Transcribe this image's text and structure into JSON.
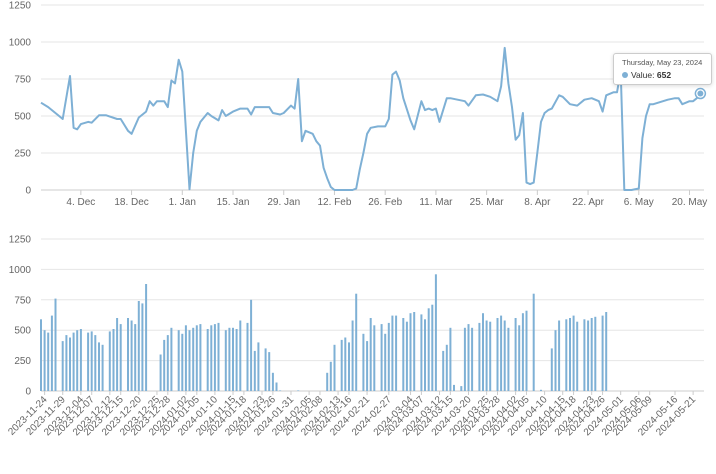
{
  "chart_data": [
    {
      "type": "line",
      "y_ticks": [
        "0",
        "250",
        "500",
        "750",
        "1000",
        "1250"
      ],
      "ylim": [
        0,
        1250
      ],
      "x_range": [
        "2023-11-23",
        "2024-05-24"
      ],
      "x_ticks": [
        {
          "date": "2023-12-04",
          "label": "4. Dec"
        },
        {
          "date": "2023-12-18",
          "label": "18. Dec"
        },
        {
          "date": "2024-01-01",
          "label": "1. Jan"
        },
        {
          "date": "2024-01-15",
          "label": "15. Jan"
        },
        {
          "date": "2024-01-29",
          "label": "29. Jan"
        },
        {
          "date": "2024-02-12",
          "label": "12. Feb"
        },
        {
          "date": "2024-02-26",
          "label": "26. Feb"
        },
        {
          "date": "2024-03-11",
          "label": "11. Mar"
        },
        {
          "date": "2024-03-25",
          "label": "25. Mar"
        },
        {
          "date": "2024-04-08",
          "label": "8. Apr"
        },
        {
          "date": "2024-04-22",
          "label": "22. Apr"
        },
        {
          "date": "2024-05-06",
          "label": "6. May"
        },
        {
          "date": "2024-05-20",
          "label": "20. May"
        }
      ],
      "grid": true,
      "color": "#7eb0d5",
      "points": [
        [
          "2023-11-23",
          590
        ],
        [
          "2023-11-25",
          560
        ],
        [
          "2023-11-28",
          500
        ],
        [
          "2023-11-29",
          480
        ],
        [
          "2023-12-01",
          770
        ],
        [
          "2023-12-02",
          420
        ],
        [
          "2023-12-03",
          410
        ],
        [
          "2023-12-04",
          445
        ],
        [
          "2023-12-06",
          460
        ],
        [
          "2023-12-07",
          455
        ],
        [
          "2023-12-09",
          505
        ],
        [
          "2023-12-11",
          505
        ],
        [
          "2023-12-14",
          480
        ],
        [
          "2023-12-15",
          480
        ],
        [
          "2023-12-17",
          400
        ],
        [
          "2023-12-18",
          380
        ],
        [
          "2023-12-20",
          490
        ],
        [
          "2023-12-22",
          530
        ],
        [
          "2023-12-23",
          600
        ],
        [
          "2023-12-24",
          570
        ],
        [
          "2023-12-25",
          600
        ],
        [
          "2023-12-27",
          600
        ],
        [
          "2023-12-28",
          560
        ],
        [
          "2023-12-29",
          740
        ],
        [
          "2023-12-30",
          720
        ],
        [
          "2023-12-31",
          880
        ],
        [
          "2024-01-01",
          800
        ],
        [
          "2024-01-03",
          5
        ],
        [
          "2024-01-04",
          250
        ],
        [
          "2024-01-05",
          400
        ],
        [
          "2024-01-06",
          460
        ],
        [
          "2024-01-08",
          520
        ],
        [
          "2024-01-09",
          500
        ],
        [
          "2024-01-11",
          470
        ],
        [
          "2024-01-12",
          540
        ],
        [
          "2024-01-13",
          500
        ],
        [
          "2024-01-15",
          530
        ],
        [
          "2024-01-17",
          550
        ],
        [
          "2024-01-19",
          550
        ],
        [
          "2024-01-20",
          510
        ],
        [
          "2024-01-21",
          560
        ],
        [
          "2024-01-23",
          560
        ],
        [
          "2024-01-25",
          560
        ],
        [
          "2024-01-26",
          520
        ],
        [
          "2024-01-28",
          510
        ],
        [
          "2024-01-29",
          520
        ],
        [
          "2024-01-31",
          570
        ],
        [
          "2024-02-01",
          550
        ],
        [
          "2024-02-02",
          750
        ],
        [
          "2024-02-03",
          330
        ],
        [
          "2024-02-04",
          400
        ],
        [
          "2024-02-06",
          380
        ],
        [
          "2024-02-07",
          330
        ],
        [
          "2024-02-08",
          300
        ],
        [
          "2024-02-09",
          150
        ],
        [
          "2024-02-10",
          80
        ],
        [
          "2024-02-11",
          20
        ],
        [
          "2024-02-12",
          0
        ],
        [
          "2024-02-14",
          0
        ],
        [
          "2024-02-17",
          0
        ],
        [
          "2024-02-18",
          10
        ],
        [
          "2024-02-19",
          140
        ],
        [
          "2024-02-20",
          250
        ],
        [
          "2024-02-21",
          380
        ],
        [
          "2024-02-22",
          420
        ],
        [
          "2024-02-24",
          430
        ],
        [
          "2024-02-26",
          430
        ],
        [
          "2024-02-27",
          480
        ],
        [
          "2024-02-28",
          780
        ],
        [
          "2024-02-29",
          800
        ],
        [
          "2024-03-01",
          740
        ],
        [
          "2024-03-02",
          620
        ],
        [
          "2024-03-04",
          470
        ],
        [
          "2024-03-05",
          410
        ],
        [
          "2024-03-07",
          600
        ],
        [
          "2024-03-08",
          540
        ],
        [
          "2024-03-09",
          550
        ],
        [
          "2024-03-10",
          540
        ],
        [
          "2024-03-11",
          550
        ],
        [
          "2024-03-12",
          460
        ],
        [
          "2024-03-14",
          620
        ],
        [
          "2024-03-15",
          620
        ],
        [
          "2024-03-17",
          610
        ],
        [
          "2024-03-19",
          600
        ],
        [
          "2024-03-20",
          570
        ],
        [
          "2024-03-22",
          640
        ],
        [
          "2024-03-24",
          645
        ],
        [
          "2024-03-26",
          630
        ],
        [
          "2024-03-28",
          600
        ],
        [
          "2024-03-29",
          700
        ],
        [
          "2024-03-30",
          960
        ],
        [
          "2024-03-31",
          720
        ],
        [
          "2024-04-01",
          560
        ],
        [
          "2024-04-02",
          340
        ],
        [
          "2024-04-03",
          370
        ],
        [
          "2024-04-04",
          520
        ],
        [
          "2024-04-05",
          50
        ],
        [
          "2024-04-06",
          40
        ],
        [
          "2024-04-07",
          50
        ],
        [
          "2024-04-08",
          250
        ],
        [
          "2024-04-09",
          460
        ],
        [
          "2024-04-10",
          520
        ],
        [
          "2024-04-11",
          540
        ],
        [
          "2024-04-12",
          550
        ],
        [
          "2024-04-14",
          640
        ],
        [
          "2024-04-15",
          630
        ],
        [
          "2024-04-17",
          580
        ],
        [
          "2024-04-19",
          570
        ],
        [
          "2024-04-21",
          610
        ],
        [
          "2024-04-23",
          620
        ],
        [
          "2024-04-25",
          600
        ],
        [
          "2024-04-26",
          530
        ],
        [
          "2024-04-27",
          640
        ],
        [
          "2024-04-29",
          660
        ],
        [
          "2024-04-30",
          660
        ],
        [
          "2024-05-01",
          800
        ],
        [
          "2024-05-02",
          0
        ],
        [
          "2024-05-04",
          0
        ],
        [
          "2024-05-06",
          10
        ],
        [
          "2024-05-07",
          350
        ],
        [
          "2024-05-08",
          500
        ],
        [
          "2024-05-09",
          580
        ],
        [
          "2024-05-10",
          580
        ],
        [
          "2024-05-14",
          610
        ],
        [
          "2024-05-16",
          620
        ],
        [
          "2024-05-17",
          620
        ],
        [
          "2024-05-18",
          580
        ],
        [
          "2024-05-19",
          590
        ],
        [
          "2024-05-20",
          600
        ],
        [
          "2024-05-21",
          600
        ],
        [
          "2024-05-22",
          620
        ],
        [
          "2024-05-23",
          652
        ]
      ],
      "tooltip": {
        "date": "2024-05-23",
        "date_label": "Thursday, May 23, 2024",
        "series_label": "Value:",
        "value": "652"
      }
    },
    {
      "type": "bar",
      "y_ticks": [
        "0",
        "250",
        "500",
        "750",
        "1000",
        "1250"
      ],
      "ylim": [
        0,
        1250
      ],
      "x_range": [
        "2023-11-23",
        "2024-05-24"
      ],
      "grid": true,
      "color": "#7eb0d5",
      "categories": [
        "2023-11-24",
        "2023-11-29",
        "2023-12-04",
        "2023-12-07",
        "2023-12-12",
        "2023-12-15",
        "2023-12-20",
        "2023-12-25",
        "2023-12-28",
        "2024-01-02",
        "2024-01-05",
        "2024-01-10",
        "2024-01-15",
        "2024-01-18",
        "2024-01-23",
        "2024-01-26",
        "2024-01-31",
        "2024-02-05",
        "2024-02-08",
        "2024-02-13",
        "2024-02-16",
        "2024-02-21",
        "2024-02-27",
        "2024-03-04",
        "2024-03-07",
        "2024-03-12",
        "2024-03-15",
        "2024-03-20",
        "2024-03-25",
        "2024-03-28",
        "2024-04-02",
        "2024-04-05",
        "2024-04-10",
        "2024-04-15",
        "2024-04-18",
        "2024-04-23",
        "2024-04-26",
        "2024-05-01",
        "2024-05-06",
        "2024-05-09",
        "2024-05-16",
        "2024-05-21"
      ],
      "points": [
        [
          "2023-11-23",
          590
        ],
        [
          "2023-11-24",
          500
        ],
        [
          "2023-11-25",
          480
        ],
        [
          "2023-11-26",
          620
        ],
        [
          "2023-11-27",
          760
        ],
        [
          "2023-11-29",
          410
        ],
        [
          "2023-11-30",
          460
        ],
        [
          "2023-12-01",
          440
        ],
        [
          "2023-12-02",
          480
        ],
        [
          "2023-12-03",
          500
        ],
        [
          "2023-12-04",
          510
        ],
        [
          "2023-12-06",
          480
        ],
        [
          "2023-12-07",
          490
        ],
        [
          "2023-12-08",
          460
        ],
        [
          "2023-12-09",
          400
        ],
        [
          "2023-12-10",
          380
        ],
        [
          "2023-12-12",
          490
        ],
        [
          "2023-12-13",
          510
        ],
        [
          "2023-12-14",
          600
        ],
        [
          "2023-12-15",
          550
        ],
        [
          "2023-12-17",
          600
        ],
        [
          "2023-12-18",
          580
        ],
        [
          "2023-12-19",
          550
        ],
        [
          "2023-12-20",
          740
        ],
        [
          "2023-12-21",
          720
        ],
        [
          "2023-12-22",
          880
        ],
        [
          "2023-12-26",
          300
        ],
        [
          "2023-12-27",
          420
        ],
        [
          "2023-12-28",
          460
        ],
        [
          "2023-12-29",
          520
        ],
        [
          "2023-12-31",
          500
        ],
        [
          "2024-01-01",
          470
        ],
        [
          "2024-01-02",
          540
        ],
        [
          "2024-01-03",
          500
        ],
        [
          "2024-01-04",
          520
        ],
        [
          "2024-01-05",
          540
        ],
        [
          "2024-01-06",
          550
        ],
        [
          "2024-01-08",
          510
        ],
        [
          "2024-01-09",
          540
        ],
        [
          "2024-01-10",
          550
        ],
        [
          "2024-01-11",
          560
        ],
        [
          "2024-01-13",
          500
        ],
        [
          "2024-01-14",
          520
        ],
        [
          "2024-01-15",
          520
        ],
        [
          "2024-01-16",
          510
        ],
        [
          "2024-01-17",
          580
        ],
        [
          "2024-01-19",
          560
        ],
        [
          "2024-01-20",
          750
        ],
        [
          "2024-01-21",
          330
        ],
        [
          "2024-01-22",
          400
        ],
        [
          "2024-01-24",
          350
        ],
        [
          "2024-01-25",
          320
        ],
        [
          "2024-01-26",
          150
        ],
        [
          "2024-01-27",
          70
        ],
        [
          "2024-01-28",
          5
        ],
        [
          "2024-02-02",
          5
        ],
        [
          "2024-02-10",
          150
        ],
        [
          "2024-02-11",
          240
        ],
        [
          "2024-02-12",
          380
        ],
        [
          "2024-02-14",
          420
        ],
        [
          "2024-02-15",
          440
        ],
        [
          "2024-02-16",
          400
        ],
        [
          "2024-02-17",
          580
        ],
        [
          "2024-02-18",
          800
        ],
        [
          "2024-02-20",
          470
        ],
        [
          "2024-02-21",
          410
        ],
        [
          "2024-02-22",
          600
        ],
        [
          "2024-02-23",
          540
        ],
        [
          "2024-02-25",
          550
        ],
        [
          "2024-02-26",
          470
        ],
        [
          "2024-02-27",
          560
        ],
        [
          "2024-02-28",
          620
        ],
        [
          "2024-02-29",
          620
        ],
        [
          "2024-03-02",
          600
        ],
        [
          "2024-03-03",
          570
        ],
        [
          "2024-03-04",
          640
        ],
        [
          "2024-03-05",
          650
        ],
        [
          "2024-03-07",
          630
        ],
        [
          "2024-03-08",
          590
        ],
        [
          "2024-03-09",
          680
        ],
        [
          "2024-03-10",
          710
        ],
        [
          "2024-03-11",
          960
        ],
        [
          "2024-03-13",
          330
        ],
        [
          "2024-03-14",
          380
        ],
        [
          "2024-03-15",
          520
        ],
        [
          "2024-03-16",
          50
        ],
        [
          "2024-03-18",
          40
        ],
        [
          "2024-03-19",
          520
        ],
        [
          "2024-03-20",
          550
        ],
        [
          "2024-03-21",
          520
        ],
        [
          "2024-03-23",
          560
        ],
        [
          "2024-03-24",
          640
        ],
        [
          "2024-03-25",
          580
        ],
        [
          "2024-03-26",
          570
        ],
        [
          "2024-03-28",
          600
        ],
        [
          "2024-03-29",
          620
        ],
        [
          "2024-03-30",
          580
        ],
        [
          "2024-03-31",
          520
        ],
        [
          "2024-04-02",
          600
        ],
        [
          "2024-04-03",
          540
        ],
        [
          "2024-04-04",
          640
        ],
        [
          "2024-04-05",
          660
        ],
        [
          "2024-04-07",
          800
        ],
        [
          "2024-04-09",
          10
        ],
        [
          "2024-04-12",
          350
        ],
        [
          "2024-04-13",
          500
        ],
        [
          "2024-04-14",
          580
        ],
        [
          "2024-04-16",
          590
        ],
        [
          "2024-04-17",
          600
        ],
        [
          "2024-04-18",
          620
        ],
        [
          "2024-04-19",
          570
        ],
        [
          "2024-04-21",
          590
        ],
        [
          "2024-04-22",
          580
        ],
        [
          "2024-04-23",
          600
        ],
        [
          "2024-04-24",
          610
        ],
        [
          "2024-04-26",
          620
        ],
        [
          "2024-04-27",
          650
        ]
      ]
    }
  ]
}
